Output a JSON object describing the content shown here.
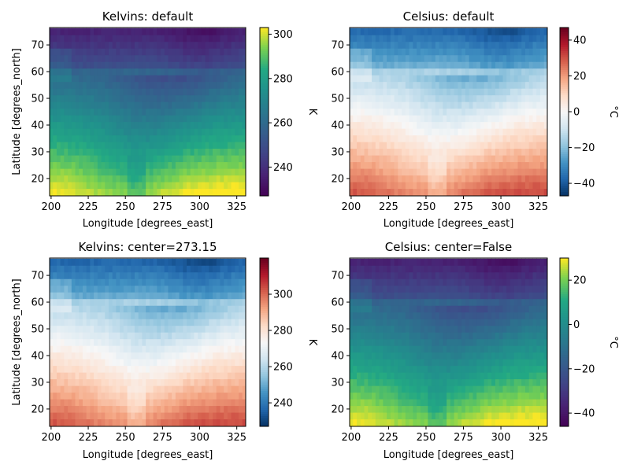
{
  "chart_data": [
    {
      "type": "heatmap",
      "title": "Kelvins: default",
      "xlabel": "Longitude [degrees_east]",
      "ylabel": "Latitude [degrees_north]",
      "xlim": [
        199,
        331
      ],
      "ylim": [
        13.5,
        76.5
      ],
      "x_ticks": [
        200,
        225,
        250,
        275,
        300,
        325
      ],
      "y_ticks": [
        20,
        30,
        40,
        50,
        60,
        70
      ],
      "colormap": "viridis",
      "colorbar": {
        "label": "K",
        "min": 227,
        "max": 303,
        "ticks": [
          "240",
          "260",
          "280",
          "300"
        ],
        "tick_values": [
          240,
          260,
          280,
          300
        ]
      },
      "field": "kelvin"
    },
    {
      "type": "heatmap",
      "title": "Celsius: default",
      "xlabel": "Longitude [degrees_east]",
      "ylabel": "",
      "xlim": [
        199,
        331
      ],
      "ylim": [
        13.5,
        76.5
      ],
      "x_ticks": [
        200,
        225,
        250,
        275,
        300,
        325
      ],
      "y_ticks": [
        20,
        30,
        40,
        50,
        60,
        70
      ],
      "colormap": "RdBu_r",
      "colorbar": {
        "label": "°C",
        "min": -47,
        "max": 47,
        "ticks": [
          "40",
          "20",
          "0",
          "−20",
          "−40"
        ],
        "tick_values": [
          40,
          20,
          0,
          -20,
          -40
        ]
      },
      "field": "celsius"
    },
    {
      "type": "heatmap",
      "title": "Kelvins: center=273.15",
      "xlabel": "Longitude [degrees_east]",
      "ylabel": "Latitude [degrees_north]",
      "xlim": [
        199,
        331
      ],
      "ylim": [
        13.5,
        76.5
      ],
      "x_ticks": [
        200,
        225,
        250,
        275,
        300,
        325
      ],
      "y_ticks": [
        20,
        30,
        40,
        50,
        60,
        70
      ],
      "colormap": "RdBu_r",
      "colorbar": {
        "label": "K",
        "min": 227,
        "max": 320,
        "ticks": [
          "240",
          "260",
          "280",
          "300"
        ],
        "tick_values": [
          240,
          260,
          280,
          300
        ]
      },
      "field": "kelvin"
    },
    {
      "type": "heatmap",
      "title": "Celsius: center=False",
      "xlabel": "Longitude [degrees_east]",
      "ylabel": "",
      "xlim": [
        199,
        331
      ],
      "ylim": [
        13.5,
        76.5
      ],
      "x_ticks": [
        200,
        225,
        250,
        275,
        300,
        325
      ],
      "y_ticks": [
        20,
        30,
        40,
        50,
        60,
        70
      ],
      "colormap": "viridis",
      "colorbar": {
        "label": "°C",
        "min": -46,
        "max": 30,
        "ticks": [
          "20",
          "0",
          "−20",
          "−40"
        ],
        "tick_values": [
          20,
          0,
          -20,
          -40
        ]
      },
      "field": "celsius"
    }
  ]
}
